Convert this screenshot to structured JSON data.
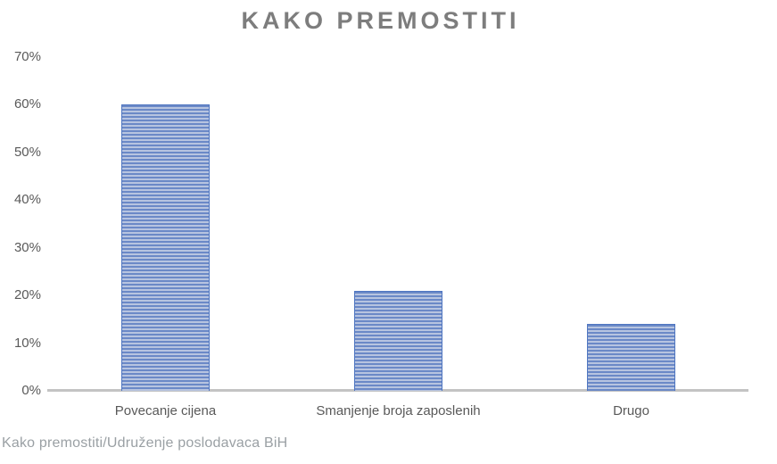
{
  "chart_data": {
    "type": "bar",
    "title": "KAKO PREMOSTITI",
    "categories": [
      "Povecanje cijena",
      "Smanjenje broja zaposlenih",
      "Drugo"
    ],
    "values": [
      60,
      21,
      14
    ],
    "unit": "%",
    "ylim": [
      0,
      70
    ],
    "ytick_step": 10,
    "ytick_labels": [
      "0%",
      "10%",
      "20%",
      "30%",
      "40%",
      "50%",
      "60%",
      "70%"
    ],
    "xlabel": "",
    "ylabel": "",
    "grid": false,
    "legend": "none",
    "colors": {
      "bar_stripe_dark": "#6b89c7",
      "bar_stripe_light": "#b7c4e0",
      "bar_border": "#4f76c1",
      "axis_line": "#c3c3c3",
      "title_text": "#7d7d7d",
      "tick_text": "#595959"
    }
  },
  "caption": {
    "source_text": "Kako premostiti/Udruženje poslodavaca BiH",
    "color": "#9aa0a4"
  }
}
